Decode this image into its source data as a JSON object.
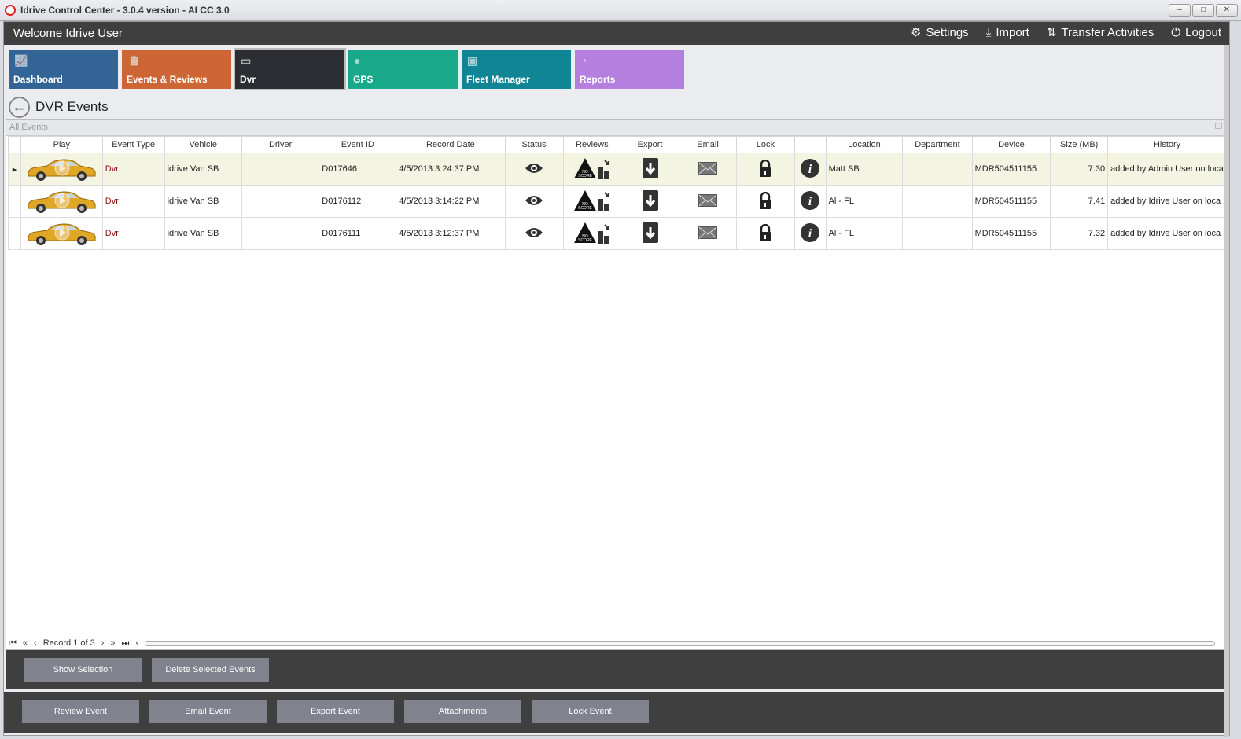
{
  "window": {
    "title": "Idrive Control Center - 3.0.4 version - AI CC 3.0",
    "minimize": "–",
    "maximize": "□",
    "close": "✕"
  },
  "header": {
    "welcome": "Welcome Idrive User",
    "nav": [
      {
        "label": "Settings",
        "icon": "gear-icon"
      },
      {
        "label": "Import",
        "icon": "download-icon"
      },
      {
        "label": "Transfer Activities",
        "icon": "transfer-icon"
      },
      {
        "label": "Logout",
        "icon": "power-icon"
      }
    ]
  },
  "tiles": [
    {
      "label": "Dashboard",
      "color": "#326496",
      "icon": "chart-icon"
    },
    {
      "label": "Events & Reviews",
      "color": "#cd6634",
      "icon": "clipboard-icon"
    },
    {
      "label": "Dvr",
      "color": "#2b2d33",
      "icon": "dvr-icon",
      "active": true
    },
    {
      "label": "GPS",
      "color": "#18a88a",
      "icon": "map-pin-icon"
    },
    {
      "label": "Fleet Manager",
      "color": "#0f8595",
      "icon": "vehicles-icon"
    },
    {
      "label": "Reports",
      "color": "#b57fe0",
      "icon": "pie-chart-icon"
    }
  ],
  "page": {
    "title": "DVR Events",
    "group": "All Events"
  },
  "grid": {
    "columns": [
      "",
      "Play",
      "Event Type",
      "Vehicle",
      "Driver",
      "Event ID",
      "Record Date",
      "Status",
      "Reviews",
      "Export",
      "Email",
      "Lock",
      "",
      "Location",
      "Department",
      "Device",
      "Size (MB)",
      "History"
    ],
    "rows": [
      {
        "event_type": "Dvr",
        "vehicle": "idrive Van SB",
        "driver": "",
        "event_id": "D017646",
        "record_date": "4/5/2013 3:24:37 PM",
        "location": "Matt SB",
        "department": "",
        "device": "MDR504511155",
        "size": "7.30",
        "history": "added by Admin User on loca",
        "selected": true
      },
      {
        "event_type": "Dvr",
        "vehicle": "idrive Van SB",
        "driver": "",
        "event_id": "D0176112",
        "record_date": "4/5/2013 3:14:22 PM",
        "location": "Al - FL",
        "department": "",
        "device": "MDR504511155",
        "size": "7.41",
        "history": "added by Idrive User on loca"
      },
      {
        "event_type": "Dvr",
        "vehicle": "idrive Van SB",
        "driver": "",
        "event_id": "D0176111",
        "record_date": "4/5/2013 3:12:37 PM",
        "location": "Al - FL",
        "department": "",
        "device": "MDR504511155",
        "size": "7.32",
        "history": "added by Idrive User on loca"
      }
    ],
    "review_badge": "NO SCORE"
  },
  "pager": {
    "record": "Record 1 of 3"
  },
  "actions1": [
    "Show Selection",
    "Delete Selected  Events"
  ],
  "actions2": [
    "Review Event",
    "Email Event",
    "Export Event",
    "Attachments",
    "Lock Event"
  ]
}
